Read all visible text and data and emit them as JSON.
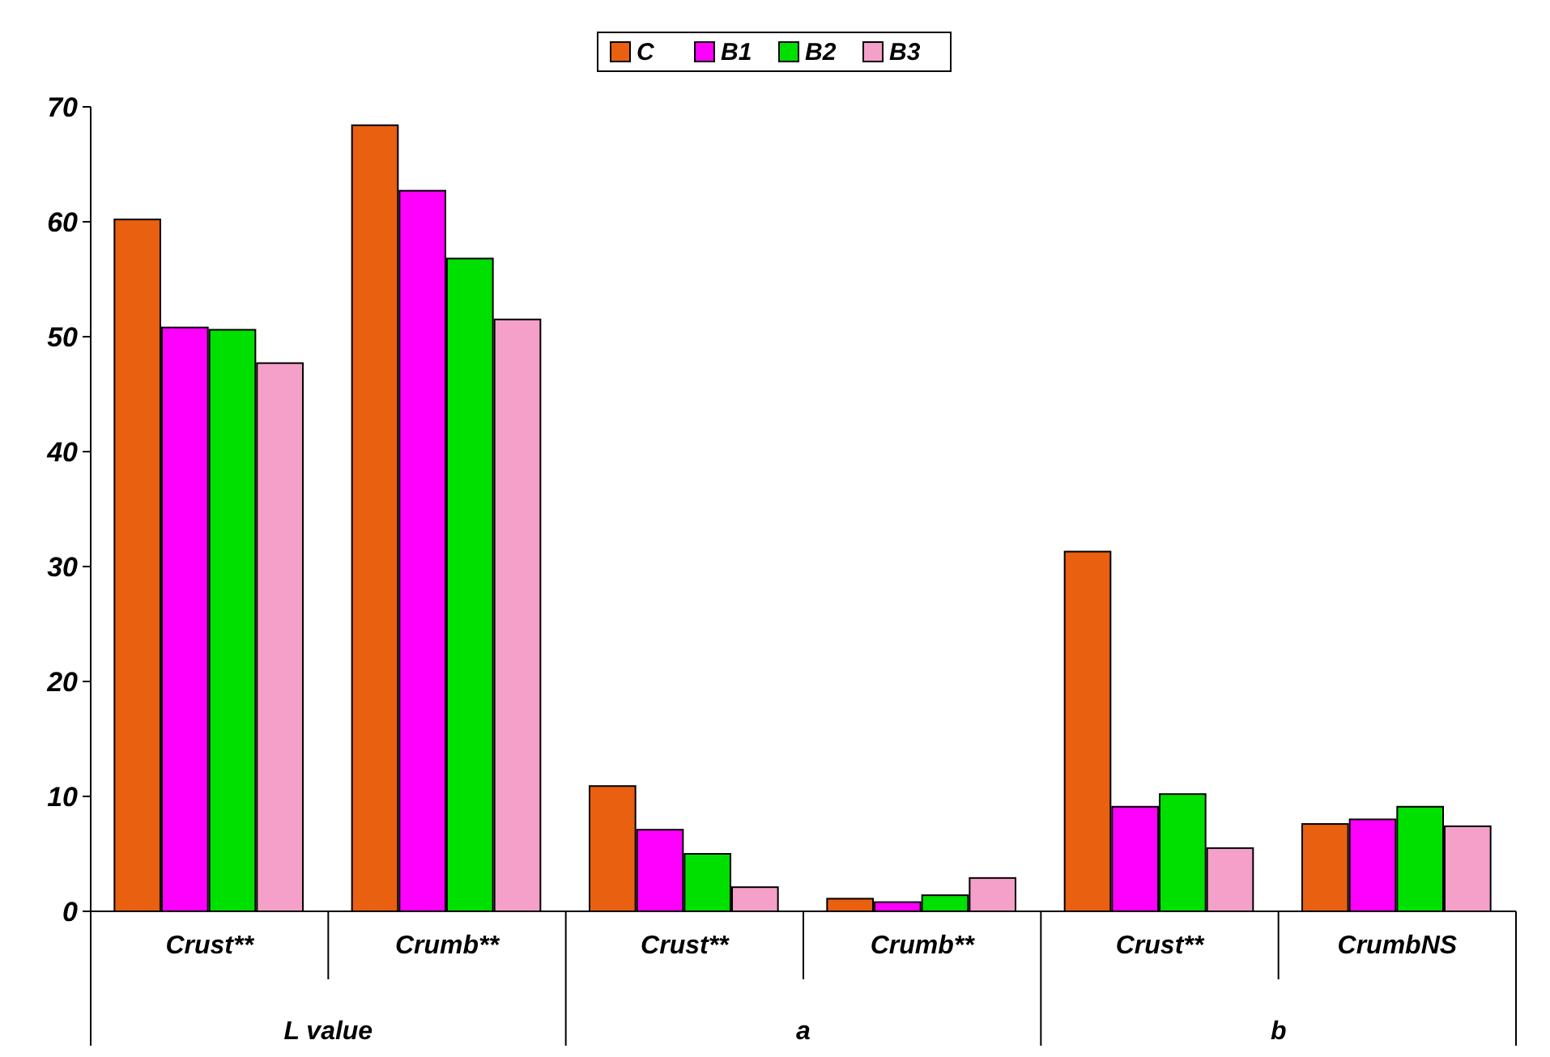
{
  "chart_data": {
    "type": "bar",
    "categories": [
      "Crust**",
      "Crumb**",
      "Crust**",
      "Crumb**",
      "Crust**",
      "CrumbNS"
    ],
    "series": [
      {
        "name": "C",
        "color": "#e86010",
        "values": [
          60.2,
          68.4,
          10.9,
          1.1,
          31.3,
          7.6
        ]
      },
      {
        "name": "B1",
        "color": "#ff00ff",
        "values": [
          50.8,
          62.7,
          7.1,
          0.8,
          9.1,
          8.0
        ]
      },
      {
        "name": "B2",
        "color": "#00e000",
        "values": [
          50.6,
          56.8,
          5.0,
          1.4,
          10.2,
          9.1
        ]
      },
      {
        "name": "B3",
        "color": "#f4a0c8",
        "values": [
          47.7,
          51.5,
          2.1,
          2.9,
          5.5,
          7.4
        ]
      }
    ],
    "annotations": [
      "L value",
      "a",
      "b"
    ],
    "ylim": [
      0,
      70
    ],
    "yticks": [
      0,
      10,
      20,
      30,
      40,
      50,
      60,
      70
    ],
    "grid": false,
    "legend": "top"
  }
}
